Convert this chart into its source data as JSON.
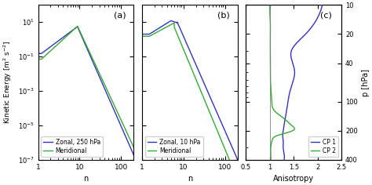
{
  "fig_width": 4.74,
  "fig_height": 2.36,
  "dpi": 100,
  "panel_a": {
    "label": "(a)",
    "xlim": [
      1,
      200
    ],
    "ylim": [
      1e-07,
      100.0
    ],
    "xlabel": "n",
    "legend": [
      "Zonal, 250 hPa",
      "Meridional"
    ],
    "zonal_color": "#3333bb",
    "meridional_color": "#33aa33"
  },
  "panel_b": {
    "label": "(b)",
    "xlim": [
      1,
      200
    ],
    "ylim": [
      1e-07,
      100.0
    ],
    "xlabel": "n",
    "legend": [
      "Zonal, 10 hPa",
      "Meridional"
    ],
    "zonal_color": "#3333bb",
    "meridional_color": "#33aa33"
  },
  "panel_c": {
    "label": "(c)",
    "xlim": [
      0.5,
      2.5
    ],
    "ylim": [
      400,
      10
    ],
    "xlabel": "Anisotropy",
    "ylabel": "p [hPa]",
    "yticks": [
      10,
      20,
      40,
      100,
      200,
      400
    ],
    "xticks": [
      0.5,
      1.0,
      1.5,
      2.0,
      2.5
    ],
    "xticklabels": [
      "0.5",
      "1",
      "1.5",
      "2",
      "2.5"
    ],
    "legend": [
      "CP 1",
      "CP 2"
    ],
    "cp1_color": "#3333bb",
    "cp2_color": "#33aa33"
  },
  "ylabel_ab": "Kinetic Energy [m$^2$ s$^{-2}$]",
  "background_color": "#ffffff",
  "text_color": "#333333"
}
